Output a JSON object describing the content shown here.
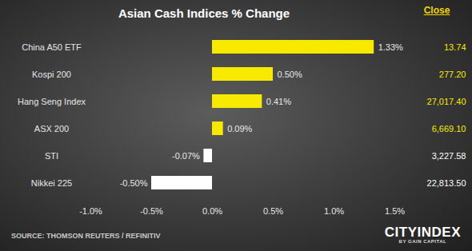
{
  "chart_data": {
    "type": "bar",
    "orientation": "horizontal",
    "title": "Asian Cash Indices % Change",
    "categories": [
      "China A50 ETF",
      "Kospi 200",
      "Hang Seng Index",
      "ASX 200",
      "STI",
      "Nikkei 225"
    ],
    "values": [
      1.33,
      0.5,
      0.41,
      0.09,
      -0.07,
      -0.5
    ],
    "value_labels": [
      "1.33%",
      "0.50%",
      "0.41%",
      "0.09%",
      "-0.07%",
      "-0.50%"
    ],
    "data_labels": true,
    "colors": [
      "#f7ea00",
      "#f7ea00",
      "#f7ea00",
      "#f7ea00",
      "#ffffff",
      "#ffffff"
    ],
    "xlim": [
      -1,
      1.5
    ],
    "xticks": [
      {
        "value": -1,
        "label": "-1.0%"
      },
      {
        "value": -0.5,
        "label": "-0.5%"
      },
      {
        "value": 0,
        "label": "0.0%"
      },
      {
        "value": 0.5,
        "label": "0.5%"
      },
      {
        "value": 1,
        "label": "1.0%"
      },
      {
        "value": 1.5,
        "label": "1.5%"
      }
    ],
    "grid": false,
    "close_header": "Close",
    "close": [
      "13.74",
      "277.20",
      "27,017.40",
      "6,669.10",
      "3,227.58",
      "22,813.50"
    ],
    "source": "SOURCE: THOMSON REUTERS / REFINITIV",
    "logo": "CITYINDEX",
    "logo_subtext": "BY GAIN CAPITAL"
  }
}
